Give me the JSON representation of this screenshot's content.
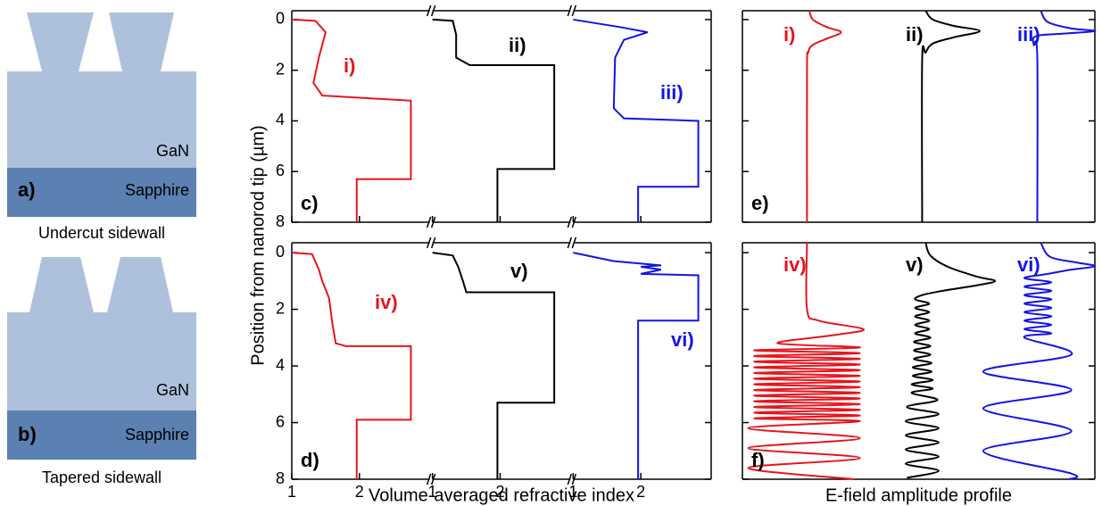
{
  "schematics": [
    {
      "label": "a)",
      "layer_top": "GaN",
      "layer_bottom": "Sapphire",
      "caption": "Undercut sidewall"
    },
    {
      "label": "b)",
      "layer_top": "GaN",
      "layer_bottom": "Sapphire",
      "caption": "Tapered sidewall"
    }
  ],
  "chart_data": [
    {
      "type": "line",
      "panel": "c)",
      "ylabel": "Position from nanorod tip (µm)",
      "subplots": true,
      "xtick_labels": false,
      "y_inverted": true,
      "xlim": [
        1,
        3.04
      ],
      "xticks": [
        1,
        2
      ],
      "ylim": [
        -0.35,
        8
      ],
      "yticks": [
        0,
        2,
        4,
        6,
        8
      ],
      "series": [
        {
          "name": "i)",
          "color": "#e8141c",
          "x": [
            1,
            1.35,
            1.5,
            1.4,
            1.32,
            1.45,
            2.76,
            2.76,
            1.96,
            1.96
          ],
          "y": [
            0,
            0.05,
            0.5,
            1.5,
            2.5,
            3.0,
            3.2,
            6.3,
            6.3,
            8
          ]
        },
        {
          "name": "ii)",
          "color": "#000000",
          "x": [
            1,
            1.3,
            1.35,
            1.35,
            1.55,
            2.8,
            2.8,
            1.96,
            1.96
          ],
          "y": [
            0,
            0.05,
            0.6,
            1.5,
            1.8,
            1.8,
            5.9,
            5.9,
            8
          ]
        },
        {
          "name": "iii)",
          "color": "#1414e6",
          "x": [
            1,
            1.7,
            2.1,
            1.75,
            1.62,
            1.6,
            1.75,
            2.85,
            2.85,
            1.96,
            1.96
          ],
          "y": [
            0,
            0.3,
            0.5,
            0.8,
            1.5,
            3.5,
            3.9,
            4.0,
            6.6,
            6.6,
            8
          ]
        }
      ]
    },
    {
      "type": "line",
      "panel": "d)",
      "xlabel": "Volume-averaged refractive index",
      "subplots": true,
      "xtick_labels": true,
      "y_inverted": true,
      "xlim": [
        1,
        3.04
      ],
      "xticks": [
        1,
        2
      ],
      "ylim": [
        -0.35,
        8
      ],
      "yticks": [
        0,
        2,
        4,
        6,
        8
      ],
      "series": [
        {
          "name": "iv)",
          "color": "#e8141c",
          "x": [
            1,
            1.3,
            1.4,
            1.45,
            1.55,
            1.6,
            1.65,
            1.8,
            2.76,
            2.76,
            1.96,
            1.96
          ],
          "y": [
            0,
            0.05,
            0.6,
            1.0,
            1.6,
            2.5,
            3.2,
            3.3,
            3.3,
            5.9,
            5.9,
            8
          ]
        },
        {
          "name": "v)",
          "color": "#000000",
          "x": [
            1,
            1.3,
            1.38,
            1.45,
            1.5,
            2.8,
            2.8,
            1.96,
            1.96
          ],
          "y": [
            0,
            0.1,
            0.5,
            1.0,
            1.4,
            1.4,
            5.3,
            5.3,
            8
          ]
        },
        {
          "name": "vi)",
          "color": "#1414e6",
          "x": [
            1,
            1.6,
            2.3,
            2.0,
            2.3,
            2.0,
            2.85,
            2.85,
            1.96,
            1.96
          ],
          "y": [
            0,
            0.3,
            0.45,
            0.5,
            0.6,
            0.75,
            0.8,
            2.4,
            2.4,
            8
          ]
        }
      ]
    },
    {
      "type": "line",
      "panel": "e)",
      "smooth": true,
      "y_inverted": true,
      "xlim": [
        0,
        3
      ],
      "ylim": [
        -0.35,
        8
      ],
      "yticks": [
        0,
        2,
        4,
        6,
        8
      ],
      "series": [
        {
          "name": "i)",
          "color": "#e8141c",
          "x": [
            0.57,
            0.6,
            0.72,
            0.84,
            0.72,
            0.6,
            0.56,
            0.55,
            0.55
          ],
          "y": [
            -0.35,
            0.0,
            0.3,
            0.5,
            0.75,
            1.0,
            1.3,
            2,
            8
          ]
        },
        {
          "name": "ii)",
          "color": "#000000",
          "x": [
            1.56,
            1.62,
            1.8,
            2.02,
            1.8,
            1.62,
            1.56,
            1.53,
            1.53
          ],
          "y": [
            -0.35,
            0,
            0.25,
            0.45,
            0.7,
            0.95,
            1.3,
            1.6,
            8
          ]
        },
        {
          "name": "iii)",
          "color": "#1414e6",
          "x": [
            2.54,
            2.6,
            2.8,
            3.0,
            2.75,
            2.5,
            2.48,
            2.51,
            2.51
          ],
          "y": [
            -0.35,
            0.1,
            0.35,
            0.45,
            0.55,
            0.65,
            1.0,
            1.5,
            8
          ]
        }
      ]
    },
    {
      "type": "line",
      "panel": "f)",
      "xlabel": "E-field amplitude profile",
      "smooth": true,
      "y_inverted": true,
      "xlim": [
        0,
        3
      ],
      "ylim": [
        -0.35,
        8
      ],
      "yticks": [
        0,
        2,
        4,
        6,
        8
      ],
      "series": [
        {
          "name": "iv)",
          "color": "#e8141c",
          "x": [
            0.55,
            0.55,
            0.65,
            1.03,
            0.8,
            0.3,
            1.0,
            0.1,
            1.0,
            0.1,
            1.0,
            0.1,
            1.0,
            0.1,
            1.0,
            0.1,
            1.0,
            0.1,
            1.0,
            0.1,
            1.0,
            0.1,
            1.0,
            0.1,
            1.0,
            0.1,
            1.0,
            0.1,
            1.0,
            0.1,
            1.0,
            0.1,
            1.0,
            0.05,
            1.0,
            0.05,
            1.0,
            0.05,
            0.95
          ],
          "y": [
            -0.35,
            2.0,
            2.4,
            2.7,
            2.9,
            3.2,
            3.35,
            3.45,
            3.55,
            3.65,
            3.75,
            3.85,
            3.95,
            4.05,
            4.15,
            4.25,
            4.35,
            4.45,
            4.55,
            4.65,
            4.75,
            4.85,
            4.95,
            5.05,
            5.15,
            5.25,
            5.35,
            5.45,
            5.55,
            5.65,
            5.75,
            5.85,
            5.95,
            6.2,
            6.55,
            6.9,
            7.25,
            7.6,
            8.0
          ]
        },
        {
          "name": "v)",
          "color": "#000000",
          "x": [
            1.56,
            1.6,
            1.75,
            2.0,
            2.15,
            2.0,
            1.7,
            1.53,
            1.47,
            1.59,
            1.47,
            1.59,
            1.47,
            1.59,
            1.47,
            1.59,
            1.47,
            1.6,
            1.46,
            1.6,
            1.46,
            1.6,
            1.46,
            1.61,
            1.45,
            1.61,
            1.45,
            1.62,
            1.44,
            1.62,
            1.44,
            1.66,
            1.4,
            1.67,
            1.39,
            1.67,
            1.39,
            1.67,
            1.39,
            1.67,
            1.39,
            1.67,
            1.4
          ],
          "y": [
            -0.35,
            0.1,
            0.5,
            0.85,
            1.0,
            1.15,
            1.35,
            1.5,
            1.65,
            1.8,
            1.95,
            2.1,
            2.25,
            2.4,
            2.55,
            2.7,
            2.85,
            3.0,
            3.15,
            3.3,
            3.45,
            3.6,
            3.75,
            3.9,
            4.05,
            4.2,
            4.35,
            4.5,
            4.65,
            4.8,
            4.95,
            5.2,
            5.45,
            5.7,
            5.95,
            6.2,
            6.45,
            6.7,
            6.95,
            7.2,
            7.45,
            7.7,
            7.95
          ]
        },
        {
          "name": "vi)",
          "color": "#1414e6",
          "x": [
            2.54,
            2.62,
            2.85,
            3.0,
            2.8,
            2.6,
            2.4,
            2.63,
            2.4,
            2.63,
            2.4,
            2.63,
            2.4,
            2.63,
            2.4,
            2.63,
            2.4,
            2.63,
            2.4,
            2.63,
            2.4,
            2.8,
            2.05,
            2.8,
            2.05,
            2.8,
            2.05,
            2.8,
            2.78
          ],
          "y": [
            -0.35,
            0.15,
            0.35,
            0.48,
            0.6,
            0.75,
            0.9,
            1.05,
            1.2,
            1.35,
            1.5,
            1.65,
            1.8,
            1.95,
            2.1,
            2.25,
            2.4,
            2.55,
            2.7,
            2.85,
            3.0,
            3.6,
            4.2,
            4.85,
            5.5,
            6.3,
            7.0,
            7.8,
            8.0
          ]
        }
      ]
    }
  ]
}
